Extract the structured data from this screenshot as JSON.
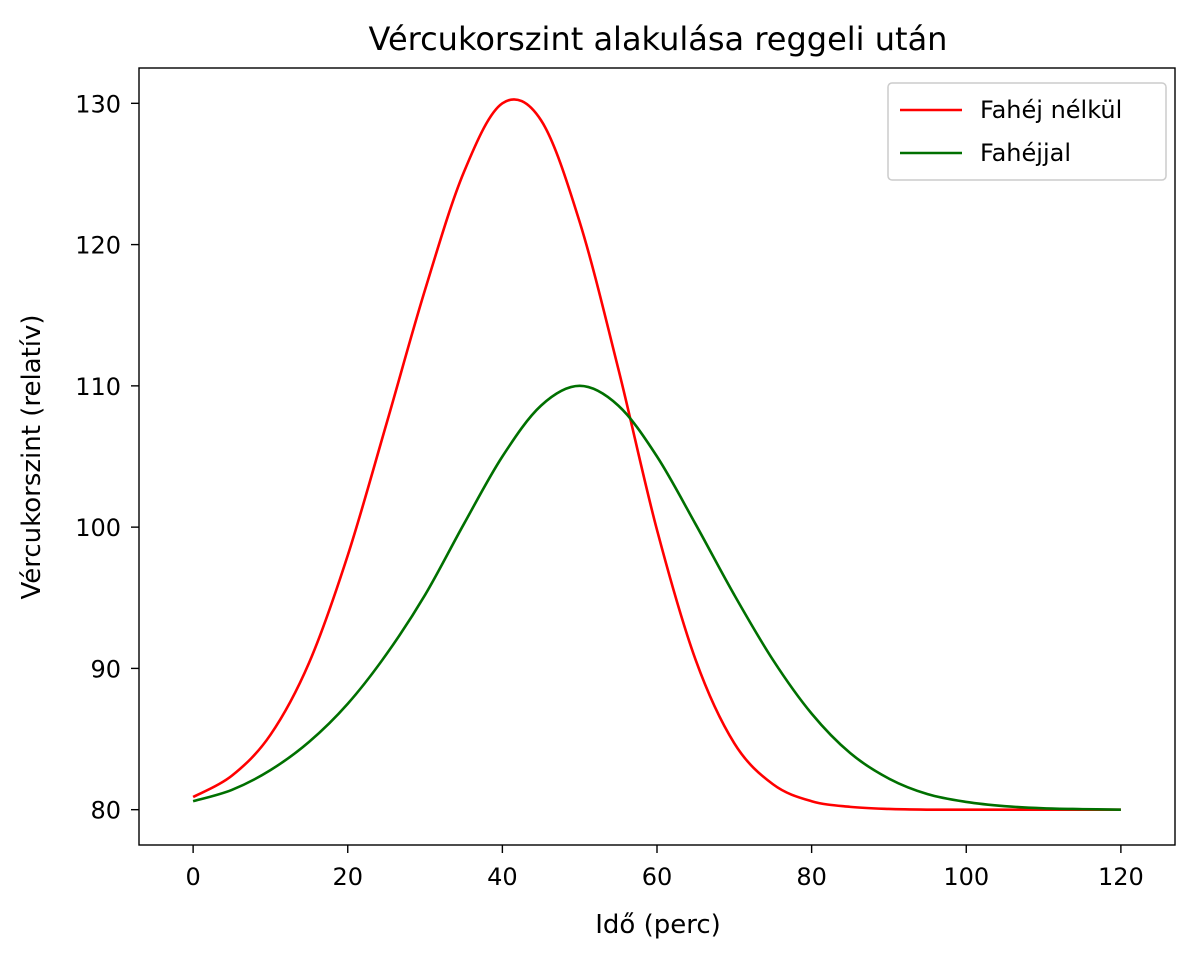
{
  "chart_data": {
    "type": "line",
    "title": "Vércukorszint alakulása reggeli után",
    "xlabel": "Idő (perc)",
    "ylabel": "Vércukorszint (relatív)",
    "xlim": [
      -7,
      127
    ],
    "ylim": [
      77.5,
      132.5
    ],
    "xticks": [
      0,
      20,
      40,
      60,
      80,
      100,
      120
    ],
    "yticks": [
      80,
      90,
      100,
      110,
      120,
      130
    ],
    "grid": false,
    "legend_position": "top-right",
    "x": [
      0,
      5,
      10,
      15,
      20,
      25,
      30,
      35,
      40,
      45,
      50,
      55,
      60,
      65,
      70,
      75,
      80,
      85,
      90,
      95,
      100,
      105,
      110,
      115,
      120
    ],
    "series": [
      {
        "name": "Fahéj nélkül",
        "color": "#ff0000",
        "values": [
          80.9,
          82.4,
          85.3,
          90.4,
          98.0,
          107.3,
          116.8,
          125.1,
          130.0,
          128.8,
          121.6,
          111.2,
          99.8,
          90.6,
          84.7,
          81.8,
          80.6,
          80.2,
          80.05,
          80.0,
          80.0,
          80.0,
          80.0,
          80.0,
          80.0
        ]
      },
      {
        "name": "Fahéjjal",
        "color": "#007000",
        "values": [
          80.6,
          81.4,
          82.8,
          84.8,
          87.5,
          91.0,
          95.2,
          100.2,
          105.0,
          108.6,
          110.0,
          108.6,
          105.0,
          100.2,
          95.2,
          90.6,
          86.8,
          84.0,
          82.2,
          81.1,
          80.55,
          80.25,
          80.1,
          80.04,
          80.0
        ]
      }
    ]
  }
}
